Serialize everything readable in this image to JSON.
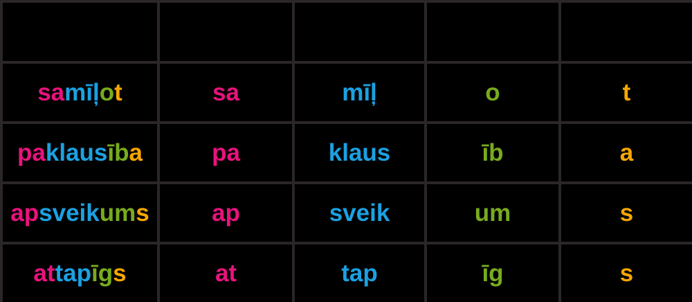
{
  "page": {
    "background": "#000000"
  },
  "table": {
    "description": "word-morphology-table",
    "grid_color": "#2b2627",
    "cell_background": "#000000",
    "part_colors": {
      "prefix": "#e8137d",
      "root": "#1ba1e2",
      "suffix": "#78ab1e",
      "ending": "#f7a600"
    },
    "columns": [
      "word",
      "prefix",
      "root",
      "suffix",
      "ending"
    ],
    "header_labels": [
      "",
      "",
      "",
      "",
      ""
    ],
    "rows": [
      {
        "word": "samīļot",
        "prefix": "sa",
        "root": "mīļ",
        "suffix": "o",
        "ending": "t"
      },
      {
        "word": "paklausība",
        "prefix": "pa",
        "root": "klaus",
        "suffix": "īb",
        "ending": "a"
      },
      {
        "word": "apsveikums",
        "prefix": "ap",
        "root": "sveik",
        "suffix": "um",
        "ending": "s"
      },
      {
        "word": "attapīgs",
        "prefix": "at",
        "root": "tap",
        "suffix": "īg",
        "ending": "s"
      }
    ]
  }
}
